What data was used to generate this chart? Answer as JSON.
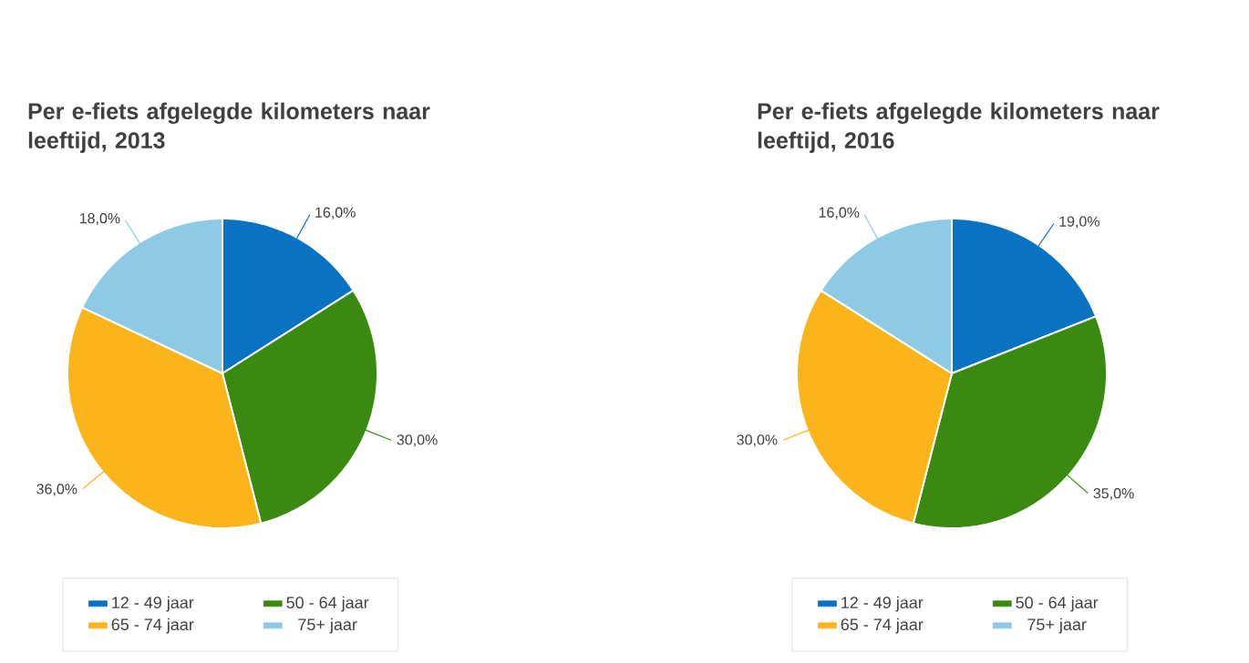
{
  "chart_data": [
    {
      "type": "pie",
      "title": "Per e-fiets afgelegde kilometers naar leeftijd, 2013",
      "categories": [
        "12 - 49 jaar",
        "50 - 64 jaar",
        "65 - 74 jaar",
        "75+ jaar"
      ],
      "values": [
        16,
        30,
        36,
        18
      ],
      "value_labels": [
        "16,0%",
        "30,0%",
        "36,0%",
        "18,0%"
      ],
      "colors": [
        "#0a72c3",
        "#3a8a12",
        "#fbb419",
        "#8ecae6"
      ],
      "legend": "bottom"
    },
    {
      "type": "pie",
      "title": "Per e-fiets afgelegde kilometers naar leeftijd, 2016",
      "categories": [
        "12 - 49 jaar",
        "50 - 64 jaar",
        "65 - 74 jaar",
        "75+ jaar"
      ],
      "values": [
        19,
        35,
        30,
        16
      ],
      "value_labels": [
        "19,0%",
        "35,0%",
        "30,0%",
        "16,0%"
      ],
      "colors": [
        "#0a72c3",
        "#3a8a12",
        "#fbb419",
        "#8ecae6"
      ],
      "legend": "bottom"
    }
  ]
}
